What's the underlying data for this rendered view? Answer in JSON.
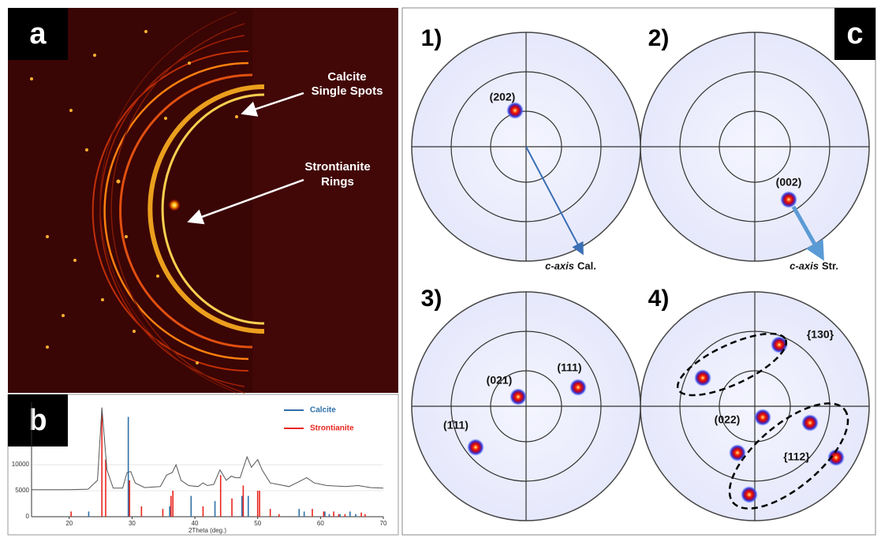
{
  "panel_a": {
    "label": "a",
    "annotations": [
      {
        "lines": [
          "Calcite",
          "Single Spots"
        ]
      },
      {
        "lines": [
          "Strontianite",
          "Rings"
        ]
      }
    ]
  },
  "chart_data": {
    "type": "line",
    "panel_label": "b",
    "xlabel": "2Theta (deg.)",
    "xlim": [
      14,
      70
    ],
    "xticks": [
      20,
      30,
      40,
      50,
      60,
      70
    ],
    "ylim": [
      0,
      22000
    ],
    "yticks": [
      0,
      5000,
      10000
    ],
    "pattern": {
      "color": "#555555",
      "x": [
        14,
        20,
        23,
        24.5,
        25.2,
        26,
        27,
        28.5,
        29.2,
        29.8,
        30.5,
        32,
        34.5,
        35.5,
        36.4,
        37,
        37.8,
        39,
        40.5,
        41.3,
        42,
        43,
        44,
        45,
        45.8,
        46.5,
        47.2,
        48.3,
        49,
        50,
        50.7,
        52,
        55,
        57.8,
        59,
        61,
        64,
        66,
        68,
        70
      ],
      "values": [
        5200,
        5200,
        5300,
        7000,
        21000,
        9000,
        5500,
        5500,
        8500,
        8700,
        6500,
        5600,
        5800,
        8000,
        8500,
        10000,
        7000,
        6000,
        5800,
        6500,
        6000,
        6200,
        9000,
        7000,
        7800,
        7500,
        7500,
        11500,
        9500,
        11000,
        9000,
        6500,
        5800,
        7500,
        6500,
        6000,
        5800,
        6000,
        5600,
        5500
      ]
    },
    "series": [
      {
        "name": "Calcite",
        "color": "#2e6fa8",
        "x": [
          23.1,
          29.4,
          36.0,
          39.4,
          43.2,
          47.5,
          48.5,
          56.6,
          57.4,
          60.7,
          61.4,
          63.1,
          64.7,
          65.6
        ],
        "values": [
          1000,
          19200,
          2000,
          4000,
          3000,
          4000,
          4000,
          1500,
          1000,
          1000,
          500,
          500,
          1000,
          500
        ]
      },
      {
        "name": "Strontianite",
        "color": "#e8261f",
        "x": [
          20.3,
          25.2,
          25.8,
          29.6,
          31.5,
          34.9,
          36.2,
          36.5,
          41.3,
          44.1,
          45.9,
          47.7,
          50.0,
          50.3,
          52.0,
          53.4,
          58.7,
          60.5,
          62.1,
          62.9,
          63.9,
          66.5,
          67.1
        ],
        "values": [
          1000,
          20000,
          11000,
          7000,
          2000,
          1500,
          4000,
          5000,
          2000,
          8000,
          3500,
          6000,
          5000,
          5000,
          1500,
          500,
          1500,
          1000,
          1000,
          500,
          500,
          800,
          500
        ]
      }
    ]
  },
  "panel_c": {
    "label": "c",
    "figures": [
      {
        "number": "1)",
        "spot_labels": [
          "(202)"
        ],
        "axis_label": {
          "italic": "c-axis",
          "text": "Cal."
        }
      },
      {
        "number": "2)",
        "spot_labels": [
          "(002)"
        ],
        "axis_label": {
          "italic": "c-axis",
          "text": "Str."
        }
      },
      {
        "number": "3)",
        "spot_labels": [
          "(021)",
          "(111)",
          "(1̄11)"
        ]
      },
      {
        "number": "4)",
        "spot_labels": [
          "{130}",
          "(022)",
          "{112}"
        ]
      }
    ]
  }
}
